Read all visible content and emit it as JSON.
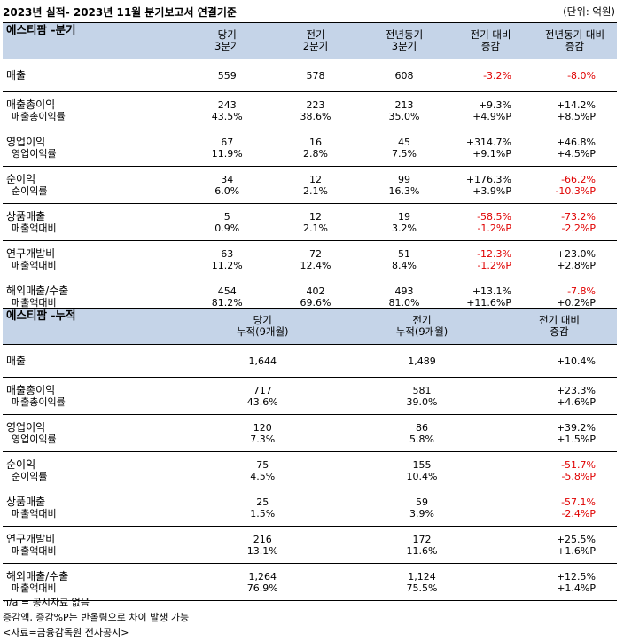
{
  "title": "2023년 실적- 2023년 11월 분기보고서 연결기준",
  "unit": "(단위: 억원)",
  "quarterly": {
    "header": {
      "name": "에스티팜 -분기",
      "cols": [
        {
          "l1": "당기",
          "l2": "3분기"
        },
        {
          "l1": "전기",
          "l2": "2분기"
        },
        {
          "l1": "전년동기",
          "l2": "3분기"
        },
        {
          "l1": "전기 대비",
          "l2": "증감"
        },
        {
          "l1": "전년동기 대비",
          "l2": "증감"
        }
      ]
    },
    "rows": [
      {
        "main": "매출",
        "sub": "",
        "v": [
          [
            "559",
            ""
          ],
          [
            "578",
            ""
          ],
          [
            "608",
            ""
          ],
          [
            "-3.2%",
            ""
          ],
          [
            "-8.0%",
            ""
          ]
        ],
        "red": [
          [
            false,
            false
          ],
          [
            false,
            false
          ],
          [
            false,
            false
          ],
          [
            true,
            false
          ],
          [
            true,
            false
          ]
        ]
      },
      {
        "main": "매출총이익",
        "sub": "매출총이익률",
        "v": [
          [
            "243",
            "43.5%"
          ],
          [
            "223",
            "38.6%"
          ],
          [
            "213",
            "35.0%"
          ],
          [
            "+9.3%",
            "+4.9%P"
          ],
          [
            "+14.2%",
            "+8.5%P"
          ]
        ],
        "red": [
          [
            false,
            false
          ],
          [
            false,
            false
          ],
          [
            false,
            false
          ],
          [
            false,
            false
          ],
          [
            false,
            false
          ]
        ]
      },
      {
        "main": "영업이익",
        "sub": "영업이익률",
        "v": [
          [
            "67",
            "11.9%"
          ],
          [
            "16",
            "2.8%"
          ],
          [
            "45",
            "7.5%"
          ],
          [
            "+314.7%",
            "+9.1%P"
          ],
          [
            "+46.8%",
            "+4.5%P"
          ]
        ],
        "red": [
          [
            false,
            false
          ],
          [
            false,
            false
          ],
          [
            false,
            false
          ],
          [
            false,
            false
          ],
          [
            false,
            false
          ]
        ]
      },
      {
        "main": "순이익",
        "sub": "순이익률",
        "v": [
          [
            "34",
            "6.0%"
          ],
          [
            "12",
            "2.1%"
          ],
          [
            "99",
            "16.3%"
          ],
          [
            "+176.3%",
            "+3.9%P"
          ],
          [
            "-66.2%",
            "-10.3%P"
          ]
        ],
        "red": [
          [
            false,
            false
          ],
          [
            false,
            false
          ],
          [
            false,
            false
          ],
          [
            false,
            false
          ],
          [
            true,
            true
          ]
        ]
      },
      {
        "main": "상품매출",
        "sub": "매출액대비",
        "v": [
          [
            "5",
            "0.9%"
          ],
          [
            "12",
            "2.1%"
          ],
          [
            "19",
            "3.2%"
          ],
          [
            "-58.5%",
            "-1.2%P"
          ],
          [
            "-73.2%",
            "-2.2%P"
          ]
        ],
        "red": [
          [
            false,
            false
          ],
          [
            false,
            false
          ],
          [
            false,
            false
          ],
          [
            true,
            true
          ],
          [
            true,
            true
          ]
        ]
      },
      {
        "main": "연구개발비",
        "sub": "매출액대비",
        "v": [
          [
            "63",
            "11.2%"
          ],
          [
            "72",
            "12.4%"
          ],
          [
            "51",
            "8.4%"
          ],
          [
            "-12.3%",
            "-1.2%P"
          ],
          [
            "+23.0%",
            "+2.8%P"
          ]
        ],
        "red": [
          [
            false,
            false
          ],
          [
            false,
            false
          ],
          [
            false,
            false
          ],
          [
            true,
            true
          ],
          [
            false,
            false
          ]
        ]
      },
      {
        "main": "해외매출/수출",
        "sub": "매출액대비",
        "v": [
          [
            "454",
            "81.2%"
          ],
          [
            "402",
            "69.6%"
          ],
          [
            "493",
            "81.0%"
          ],
          [
            "+13.1%",
            "+11.6%P"
          ],
          [
            "-7.8%",
            "+0.2%P"
          ]
        ],
        "red": [
          [
            false,
            false
          ],
          [
            false,
            false
          ],
          [
            false,
            false
          ],
          [
            false,
            false
          ],
          [
            true,
            false
          ]
        ]
      }
    ]
  },
  "cumulative": {
    "header": {
      "name": "에스티팜 -누적",
      "cols": [
        {
          "l1": "당기",
          "l2": "누적(9개월)"
        },
        {
          "l1": "전기",
          "l2": "누적(9개월)"
        },
        {
          "l1": "전기 대비",
          "l2": "증감"
        }
      ]
    },
    "rows": [
      {
        "main": "매출",
        "sub": "",
        "v": [
          [
            "1,644",
            ""
          ],
          [
            "1,489",
            ""
          ],
          [
            "+10.4%",
            ""
          ]
        ],
        "red": [
          [
            false,
            false
          ],
          [
            false,
            false
          ],
          [
            false,
            false
          ]
        ]
      },
      {
        "main": "매출총이익",
        "sub": "매출총이익률",
        "v": [
          [
            "717",
            "43.6%"
          ],
          [
            "581",
            "39.0%"
          ],
          [
            "+23.3%",
            "+4.6%P"
          ]
        ],
        "red": [
          [
            false,
            false
          ],
          [
            false,
            false
          ],
          [
            false,
            false
          ]
        ]
      },
      {
        "main": "영업이익",
        "sub": "영업이익률",
        "v": [
          [
            "120",
            "7.3%"
          ],
          [
            "86",
            "5.8%"
          ],
          [
            "+39.2%",
            "+1.5%P"
          ]
        ],
        "red": [
          [
            false,
            false
          ],
          [
            false,
            false
          ],
          [
            false,
            false
          ]
        ]
      },
      {
        "main": "순이익",
        "sub": "순이익률",
        "v": [
          [
            "75",
            "4.5%"
          ],
          [
            "155",
            "10.4%"
          ],
          [
            "-51.7%",
            "-5.8%P"
          ]
        ],
        "red": [
          [
            false,
            false
          ],
          [
            false,
            false
          ],
          [
            true,
            true
          ]
        ]
      },
      {
        "main": "상품매출",
        "sub": "매출액대비",
        "v": [
          [
            "25",
            "1.5%"
          ],
          [
            "59",
            "3.9%"
          ],
          [
            "-57.1%",
            "-2.4%P"
          ]
        ],
        "red": [
          [
            false,
            false
          ],
          [
            false,
            false
          ],
          [
            true,
            true
          ]
        ]
      },
      {
        "main": "연구개발비",
        "sub": "매출액대비",
        "v": [
          [
            "216",
            "13.1%"
          ],
          [
            "172",
            "11.6%"
          ],
          [
            "+25.5%",
            "+1.6%P"
          ]
        ],
        "red": [
          [
            false,
            false
          ],
          [
            false,
            false
          ],
          [
            false,
            false
          ]
        ]
      },
      {
        "main": "해외매출/수출",
        "sub": "매출액대비",
        "v": [
          [
            "1,264",
            "76.9%"
          ],
          [
            "1,124",
            "75.5%"
          ],
          [
            "+12.5%",
            "+1.4%P"
          ]
        ],
        "red": [
          [
            false,
            false
          ],
          [
            false,
            false
          ],
          [
            false,
            false
          ]
        ]
      }
    ]
  },
  "notes": [
    "n/a = 공시자료 없음",
    "증감액, 증감%P는 반올림으로 차이 발생 가능",
    "<자료=금융감독원 전자공시>"
  ],
  "colors": {
    "header_bg": "#c5d4e8",
    "negative": "#e00000"
  }
}
